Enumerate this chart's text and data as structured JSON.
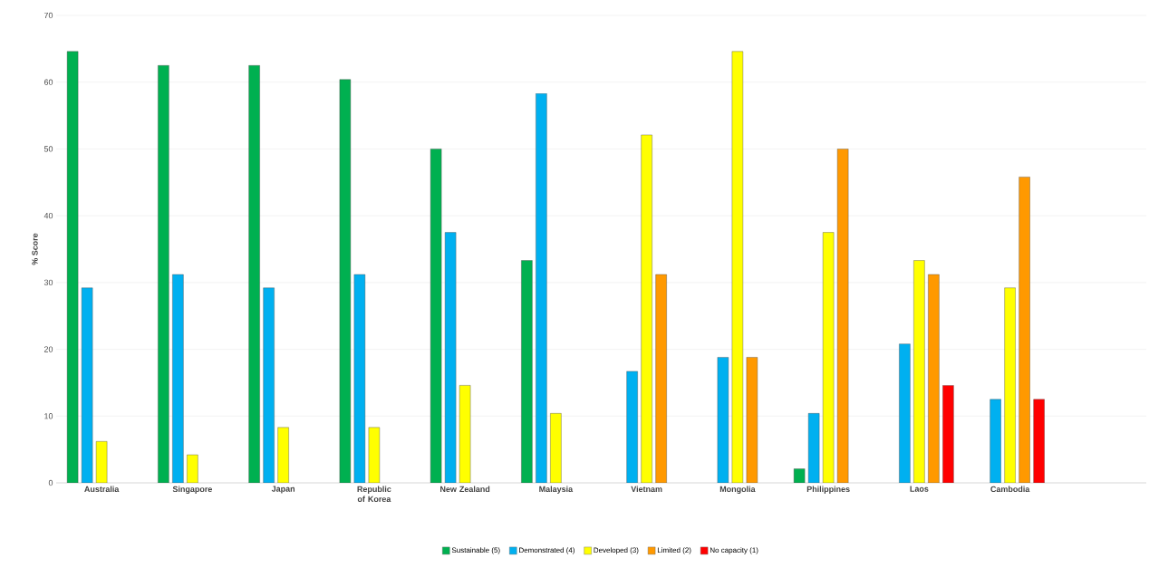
{
  "chart_data": {
    "type": "bar",
    "ylabel": "% Score",
    "categories": [
      "Australia",
      "Singapore",
      "Japan",
      "Republic of Korea",
      "New Zealand",
      "Malaysia",
      "Vietnam",
      "Mongolia",
      "Philippines",
      "Laos",
      "Cambodia"
    ],
    "series": [
      {
        "name": "Sustainable (5)",
        "color": "#00b050",
        "values": [
          64.6,
          62.5,
          62.5,
          60.4,
          50,
          33.3,
          null,
          null,
          2.1,
          null,
          null
        ]
      },
      {
        "name": "Demonstrated (4)",
        "color": "#00b0f0",
        "values": [
          29.2,
          31.2,
          29.2,
          31.2,
          37.5,
          58.3,
          16.7,
          18.8,
          10.4,
          20.8,
          12.5
        ]
      },
      {
        "name": "Developed (3)",
        "color": "#ffff00",
        "values": [
          6.2,
          4.2,
          8.3,
          8.3,
          14.6,
          10.4,
          52.1,
          64.6,
          37.5,
          33.3,
          29.2
        ]
      },
      {
        "name": "Limited (2)",
        "color": "#ff9900",
        "values": [
          null,
          null,
          null,
          null,
          null,
          null,
          31.2,
          18.8,
          50,
          31.2,
          45.8
        ]
      },
      {
        "name": "No capacity (1)",
        "color": "#ff0000",
        "values": [
          null,
          null,
          null,
          null,
          null,
          null,
          null,
          null,
          null,
          14.6,
          12.5
        ]
      }
    ],
    "ylim": [
      0,
      70
    ],
    "yticks": [
      0,
      10,
      20,
      30,
      40,
      50,
      60,
      70
    ],
    "grid": "y",
    "legend": "bottom"
  }
}
